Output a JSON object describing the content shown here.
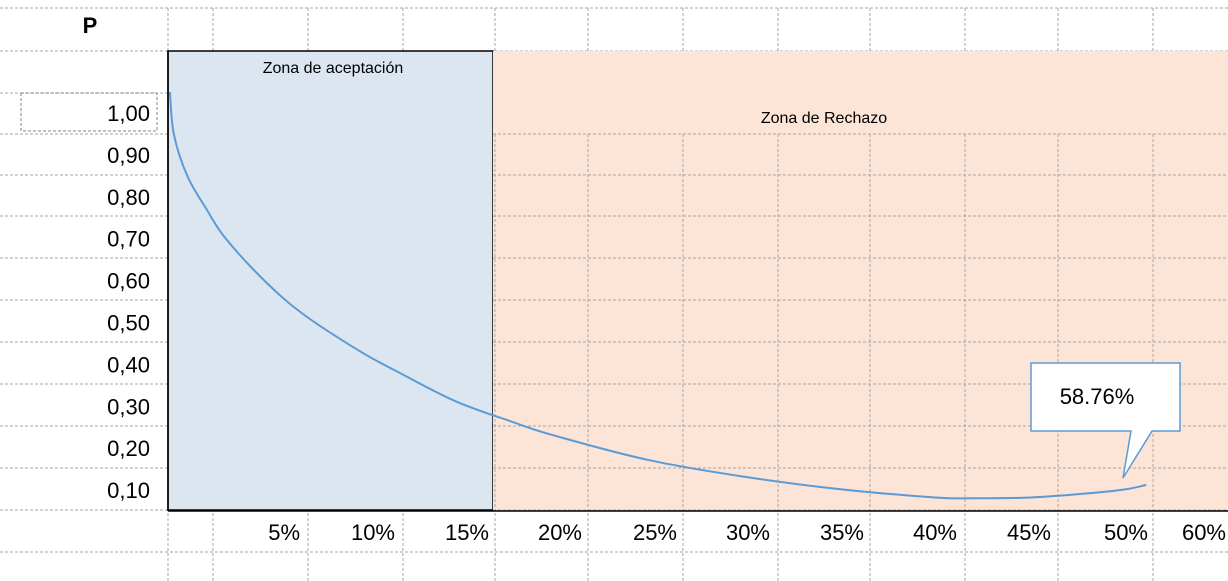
{
  "header": {
    "p_label": "P"
  },
  "zones": {
    "acceptance_label": "Zona de aceptación",
    "rejection_label": "Zona de Rechazo",
    "acceptance_fill": "#dce6f1",
    "rejection_fill": "#fce4d6"
  },
  "callout": {
    "text": "58.76%"
  },
  "colors": {
    "curve": "#5b9bd5",
    "callout_border": "#5b9bd5",
    "gridline": "#a6a6a6",
    "axis": "#000000"
  },
  "chart_data": {
    "type": "line",
    "title": "",
    "xlabel": "",
    "ylabel": "P",
    "y_ticks": [
      "1,00",
      "0,90",
      "0,80",
      "0,70",
      "0,60",
      "0,50",
      "0,40",
      "0,30",
      "0,20",
      "0,10"
    ],
    "x_ticks": [
      "5%",
      "10%",
      "15%",
      "20%",
      "25%",
      "30%",
      "35%",
      "40%",
      "45%",
      "50%",
      "60%"
    ],
    "series": [
      {
        "name": "",
        "x": [
          0.1,
          0.3,
          1,
          2,
          3,
          5,
          7,
          10,
          12,
          15,
          18,
          20,
          25,
          30,
          35,
          40,
          42,
          45,
          48,
          50,
          51
        ],
        "y": [
          1.0,
          0.9,
          0.8,
          0.72,
          0.65,
          0.55,
          0.47,
          0.38,
          0.33,
          0.26,
          0.21,
          0.18,
          0.12,
          0.08,
          0.05,
          0.03,
          0.028,
          0.03,
          0.04,
          0.05,
          0.06
        ]
      }
    ],
    "acceptance_zone_x": [
      0,
      15.5
    ]
  }
}
